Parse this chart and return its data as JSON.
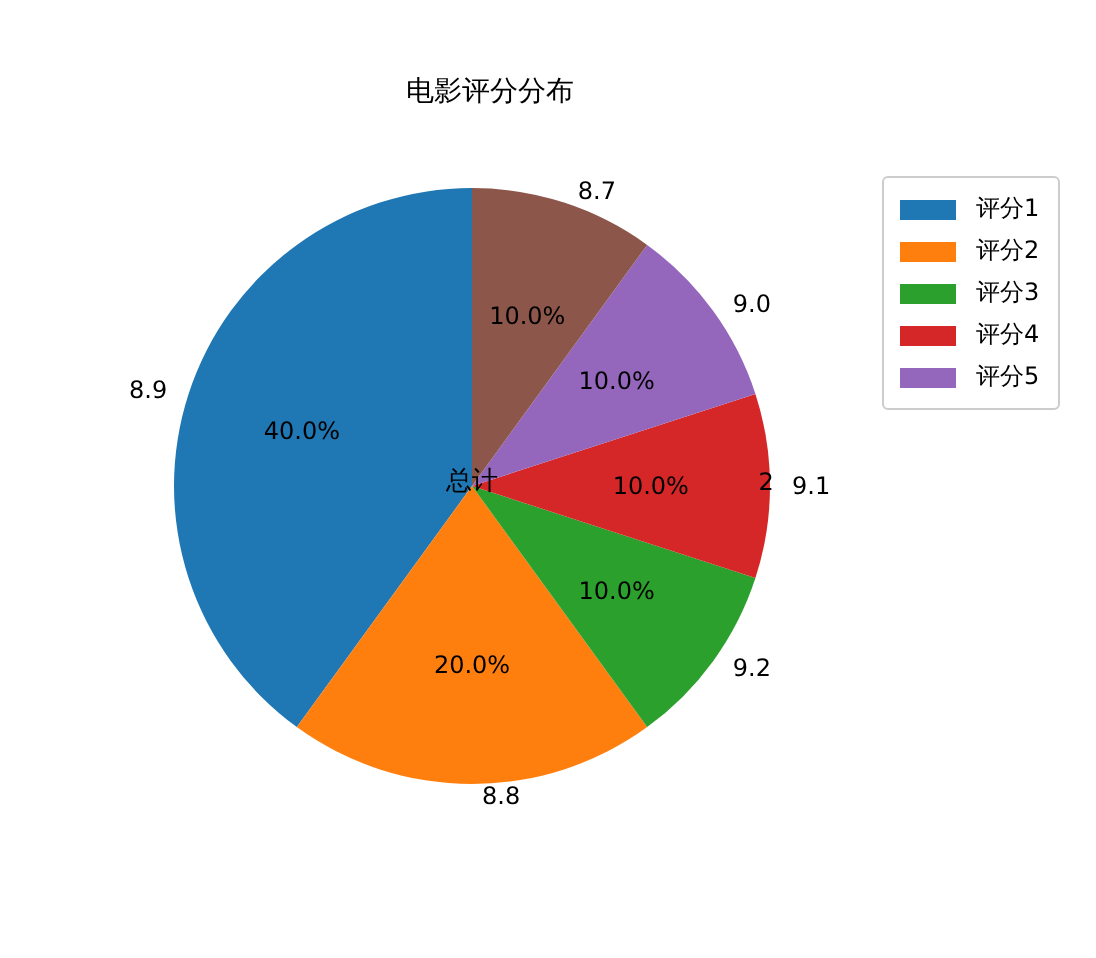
{
  "chart_data": {
    "type": "pie",
    "title": "电影评分分布",
    "categories": [
      "8.9",
      "8.8",
      "9.2",
      "9.1",
      "9.0",
      "8.7"
    ],
    "values": [
      40,
      20,
      10,
      10,
      10,
      10
    ],
    "value_labels": [
      "40.0%",
      "20.0%",
      "10.0%",
      "10.0%",
      "10.0%",
      "10.0%"
    ],
    "colors": [
      "#1f77b4",
      "#ff7f0e",
      "#2ca02c",
      "#d62728",
      "#9467bd",
      "#8c564b"
    ],
    "annotations": [
      "总计",
      "2",
      "评分1",
      "评分2",
      "评分3",
      "评分4",
      "评分5"
    ]
  }
}
